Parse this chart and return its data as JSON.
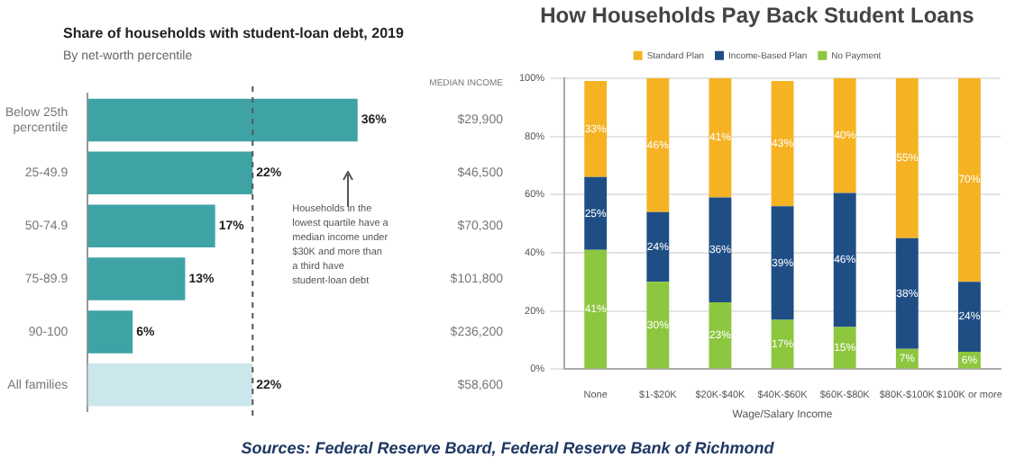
{
  "chart_data": [
    {
      "type": "bar",
      "orientation": "horizontal",
      "title": "Share of households with student-loan debt, 2019",
      "subtitle": "By net-worth percentile",
      "categories": [
        "Below 25th percentile",
        "25-49.9",
        "50-74.9",
        "75-89.9",
        "90-100",
        "All families"
      ],
      "values": [
        36,
        22,
        17,
        13,
        6,
        22
      ],
      "colors": [
        "#3fa3a6",
        "#3fa3a6",
        "#3fa3a6",
        "#3fa3a6",
        "#3fa3a6",
        "#cce7ec"
      ],
      "value_labels": [
        "36%",
        "22%",
        "17%",
        "13%",
        "6%",
        "22%"
      ],
      "ref_lines": [
        {
          "axis": "x",
          "value": 22,
          "line_style": "dashed",
          "color": "#555555"
        }
      ],
      "tick_labels": "y",
      "annotations": [
        "MEDIAN INCOME",
        "Households in the lowest quartile have a median income under $30K and more than a third have student-loan debt",
        "$29,900",
        "$46,500",
        "$70,300",
        "$101,800",
        "$236,200",
        "$58,600"
      ]
    },
    {
      "type": "bar",
      "stacked": true,
      "title": "How Households Pay Back Student Loans",
      "xlabel": "Wage/Salary Income",
      "categories": [
        "None",
        "$1-$20K",
        "$20K-$40K",
        "$40K-$60K",
        "$60K-$80K",
        "$80K-$100K",
        "$100K or more"
      ],
      "series": [
        {
          "name": "No Payment",
          "color": "#8dc63f",
          "values": [
            41,
            30,
            23,
            17,
            14.5,
            7,
            6
          ],
          "value_labels": [
            "41%",
            "30%",
            "23%",
            "17%",
            "15%",
            "7%",
            "6%"
          ]
        },
        {
          "name": "Income-Based Plan",
          "color": "#1f4e85",
          "values": [
            25,
            24,
            36,
            39,
            46,
            38,
            24
          ],
          "value_labels": [
            "25%",
            "24%",
            "36%",
            "39%",
            "46%",
            "38%",
            "24%"
          ]
        },
        {
          "name": "Standard Plan",
          "color": "#f5b324",
          "values": [
            33,
            46,
            41,
            43,
            39.5,
            55,
            70
          ],
          "value_labels": [
            "33%",
            "46%",
            "41%",
            "43%",
            "40%",
            "55%",
            "70%"
          ]
        }
      ],
      "ylim": [
        0,
        100
      ],
      "yticks": [
        {
          "value": 0,
          "label": "0%"
        },
        {
          "value": 20,
          "label": "20%"
        },
        {
          "value": 40,
          "label": "40%"
        },
        {
          "value": 60,
          "label": "60%"
        },
        {
          "value": 80,
          "label": "80%"
        },
        {
          "value": 100,
          "label": "100%"
        }
      ],
      "grid": "y",
      "legend": "top",
      "annotations": [
        "Sources: Federal Reserve Board, Federal Reserve Bank of Richmond"
      ]
    }
  ]
}
